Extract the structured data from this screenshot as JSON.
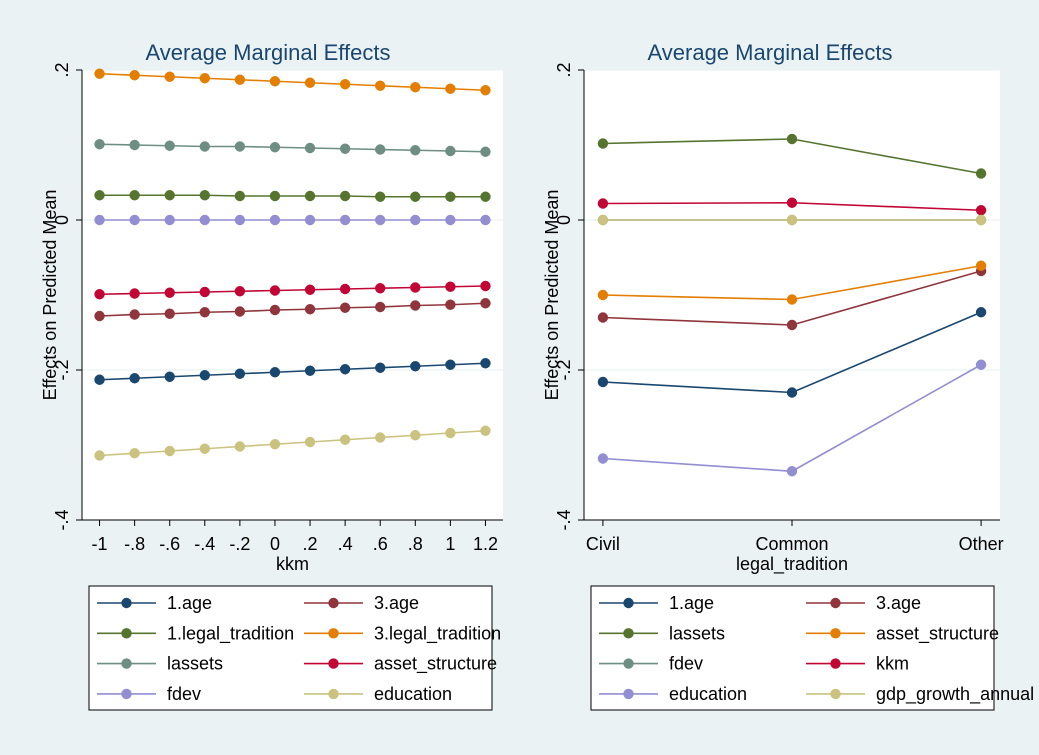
{
  "chart_data": [
    {
      "type": "line",
      "title": "Average Marginal Effects",
      "xlabel": "kkm",
      "ylabel": "Effects on Predicted Mean",
      "x": [
        -1,
        -0.8,
        -0.6,
        -0.4,
        -0.2,
        0,
        0.2,
        0.4,
        0.6,
        0.8,
        1,
        1.2
      ],
      "xticklabels": [
        "-1",
        "-.8",
        "-.6",
        "-.4",
        "-.2",
        "0",
        ".2",
        ".4",
        ".6",
        ".8",
        "1",
        "1.2"
      ],
      "ylim": [
        -0.4,
        0.2
      ],
      "yticks": [
        -0.4,
        -0.2,
        0,
        0.2
      ],
      "yticklabels": [
        "-.4",
        "-.2",
        "0",
        ".2"
      ],
      "grid": true,
      "legend_position": "bottom",
      "series": [
        {
          "name": "1.age",
          "color": "#1a476f",
          "values": [
            -0.213,
            -0.211,
            -0.209,
            -0.207,
            -0.205,
            -0.203,
            -0.201,
            -0.199,
            -0.197,
            -0.195,
            -0.193,
            -0.191
          ]
        },
        {
          "name": "3.age",
          "color": "#90353b",
          "values": [
            -0.128,
            -0.126,
            -0.125,
            -0.123,
            -0.122,
            -0.12,
            -0.119,
            -0.117,
            -0.116,
            -0.114,
            -0.113,
            -0.111
          ]
        },
        {
          "name": "1.legal_tradition",
          "color": "#55752f",
          "values": [
            0.033,
            0.033,
            0.033,
            0.033,
            0.032,
            0.032,
            0.032,
            0.032,
            0.031,
            0.031,
            0.031,
            0.031
          ]
        },
        {
          "name": "3.legal_tradition",
          "color": "#e37e00",
          "values": [
            0.195,
            0.193,
            0.191,
            0.189,
            0.187,
            0.185,
            0.183,
            0.181,
            0.179,
            0.177,
            0.175,
            0.173
          ]
        },
        {
          "name": "lassets",
          "color": "#6e8e84",
          "values": [
            0.101,
            0.1,
            0.099,
            0.098,
            0.098,
            0.097,
            0.096,
            0.095,
            0.094,
            0.093,
            0.092,
            0.091
          ]
        },
        {
          "name": "asset_structure",
          "color": "#c10534",
          "values": [
            -0.099,
            -0.098,
            -0.097,
            -0.096,
            -0.095,
            -0.094,
            -0.093,
            -0.092,
            -0.091,
            -0.09,
            -0.089,
            -0.088
          ]
        },
        {
          "name": "fdev",
          "color": "#938dd2",
          "values": [
            0,
            0,
            0,
            0,
            0,
            0,
            0,
            0,
            0,
            0,
            0,
            0
          ]
        },
        {
          "name": "education",
          "color": "#cac27e",
          "values": [
            -0.314,
            -0.311,
            -0.308,
            -0.305,
            -0.302,
            -0.299,
            -0.296,
            -0.293,
            -0.29,
            -0.287,
            -0.284,
            -0.281
          ]
        }
      ]
    },
    {
      "type": "line",
      "title": "Average Marginal Effects",
      "xlabel": "legal_tradition",
      "ylabel": "Effects on Predicted Mean",
      "categories": [
        "Civil",
        "Common",
        "Other"
      ],
      "ylim": [
        -0.4,
        0.2
      ],
      "yticks": [
        -0.4,
        -0.2,
        0,
        0.2
      ],
      "yticklabels": [
        "-.4",
        "-.2",
        "0",
        ".2"
      ],
      "grid": true,
      "legend_position": "bottom",
      "series": [
        {
          "name": "1.age",
          "color": "#1a476f",
          "values": [
            -0.216,
            -0.23,
            -0.123
          ]
        },
        {
          "name": "3.age",
          "color": "#90353b",
          "values": [
            -0.13,
            -0.14,
            -0.068
          ]
        },
        {
          "name": "lassets",
          "color": "#55752f",
          "values": [
            0.102,
            0.108,
            0.062
          ]
        },
        {
          "name": "asset_structure",
          "color": "#e37e00",
          "values": [
            -0.1,
            -0.106,
            -0.061
          ]
        },
        {
          "name": "fdev",
          "color": "#6e8e84",
          "values": [
            0,
            0,
            0
          ]
        },
        {
          "name": "kkm",
          "color": "#c10534",
          "values": [
            0.022,
            0.023,
            0.013
          ]
        },
        {
          "name": "education",
          "color": "#938dd2",
          "values": [
            -0.318,
            -0.335,
            -0.193
          ]
        },
        {
          "name": "gdp_growth_annual",
          "color": "#cac27e",
          "values": [
            0,
            0,
            0
          ]
        }
      ]
    }
  ]
}
